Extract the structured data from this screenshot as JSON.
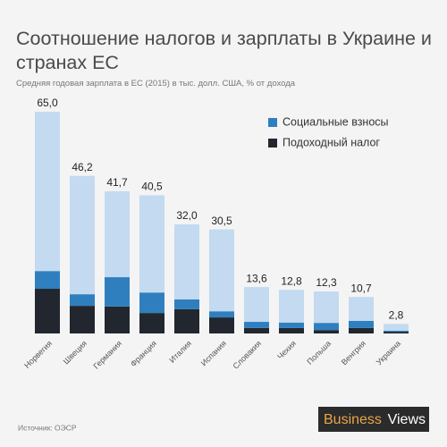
{
  "chart_data": {
    "type": "stacked_bar",
    "title": "Соотношение налогов и зарплаты в Украине и странах ЕС",
    "subtitle": "Средняя годовая зарплата в ЕС (2015) в тыс. долл. США, % от дохода",
    "source": "Источник: ОЭСР",
    "logo": [
      "Business",
      "Views"
    ],
    "categories": [
      "Норвегия",
      "Швеция",
      "Германия",
      "Франция",
      "Италия",
      "Испания",
      "Словакия",
      "Чехия",
      "Польша",
      "Венгрия",
      "Украина"
    ],
    "series": [
      {
        "name": "Подоходный налог",
        "color": "#22272f",
        "values": [
          13.1,
          8.1,
          7.9,
          6.0,
          7.1,
          4.7,
          1.6,
          1.6,
          1.0,
          1.6,
          0.5
        ]
      },
      {
        "name": "Социальные взносы",
        "color": "#2f7fbf",
        "values": [
          5.2,
          3.4,
          8.6,
          6.0,
          2.9,
          1.8,
          1.8,
          1.6,
          2.1,
          2.1,
          0.3
        ]
      },
      {
        "color": "#c3daf0",
        "values": [
          46.7,
          34.7,
          25.2,
          28.5,
          22.0,
          24.0,
          10.2,
          9.6,
          9.2,
          7.0,
          2.0
        ]
      }
    ],
    "totals": [
      65.0,
      46.2,
      41.7,
      40.5,
      32.0,
      30.5,
      13.6,
      12.8,
      12.3,
      10.7,
      2.8
    ],
    "total_labels": [
      "65,0",
      "46,2",
      "41,7",
      "40,5",
      "32,0",
      "30,5",
      "13,6",
      "12,8",
      "12,3",
      "10,7",
      "2,8"
    ],
    "ylim": [
      0,
      65
    ],
    "legend_series": [
      1,
      0
    ]
  }
}
